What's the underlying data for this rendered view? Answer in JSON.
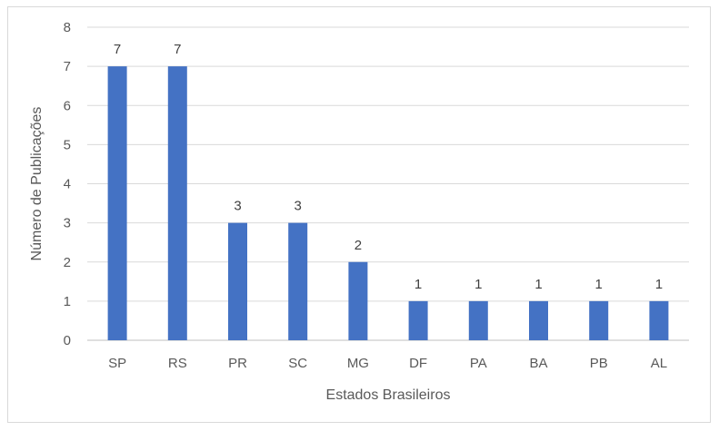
{
  "chart_data": {
    "type": "bar",
    "categories": [
      "SP",
      "RS",
      "PR",
      "SC",
      "MG",
      "DF",
      "PA",
      "BA",
      "PB",
      "AL"
    ],
    "values": [
      7,
      7,
      3,
      3,
      2,
      1,
      1,
      1,
      1,
      1
    ],
    "data_labels": [
      "7",
      "7",
      "3",
      "3",
      "2",
      "1",
      "1",
      "1",
      "1",
      "1"
    ],
    "yticks": [
      "0",
      "1",
      "2",
      "3",
      "4",
      "5",
      "6",
      "7",
      "8"
    ],
    "title": "",
    "xlabel": "Estados Brasileiros",
    "ylabel": "Número de Publicações",
    "ylim": [
      0,
      8
    ],
    "grid": true,
    "legend": "none",
    "colors": {
      "bar": "#4472C4",
      "grid": "#d9d9d9",
      "axis": "#bfbfbf",
      "text": "#595959"
    }
  }
}
